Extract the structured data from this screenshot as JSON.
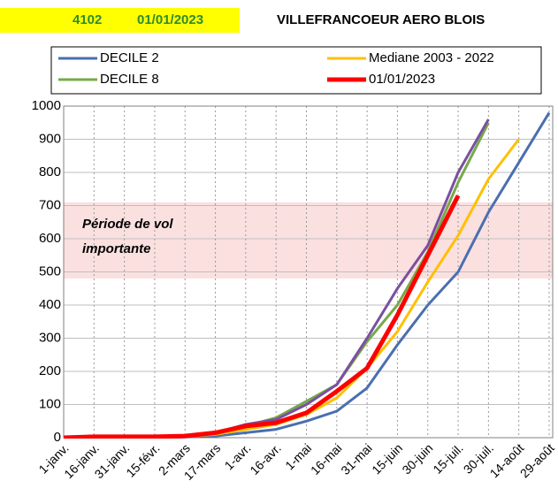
{
  "chart_data": {
    "type": "line",
    "header_code": "4102",
    "header_date": "01/01/2023",
    "title": "VILLEFRANCOEUR AERO BLOIS",
    "categories": [
      "1-janv.",
      "16-janv.",
      "31-janv.",
      "15-févr.",
      "2-mars",
      "17-mars",
      "1-avr.",
      "16-avr.",
      "1-mai",
      "16-mai",
      "31-mai",
      "15-juin",
      "30-juin",
      "15-juil.",
      "30-juil.",
      "14-août",
      "29-août"
    ],
    "series": [
      {
        "name": "DECILE 2",
        "color": "#4a6fb0",
        "width": 3,
        "values": [
          0,
          0,
          0,
          0,
          2,
          5,
          15,
          25,
          50,
          80,
          150,
          280,
          400,
          500,
          680,
          830,
          980
        ]
      },
      {
        "name": "Mediane 2003 - 2022",
        "color": "#ffc000",
        "width": 3,
        "values": [
          0,
          0,
          0,
          0,
          3,
          10,
          25,
          40,
          70,
          120,
          210,
          320,
          470,
          610,
          780,
          900,
          null
        ]
      },
      {
        "name": "DECILE 8",
        "color": "#77a94a",
        "width": 3,
        "values": [
          0,
          0,
          0,
          0,
          5,
          15,
          35,
          60,
          110,
          160,
          290,
          400,
          560,
          770,
          950,
          null,
          null
        ]
      },
      {
        "name": "01/01/2023",
        "color": "#ff0000",
        "width": 5,
        "values": [
          0,
          3,
          3,
          3,
          5,
          15,
          35,
          45,
          75,
          140,
          210,
          370,
          550,
          730,
          null,
          null,
          null
        ]
      },
      {
        "color": "#7a50a0",
        "width": 3,
        "values": [
          0,
          0,
          0,
          0,
          5,
          15,
          40,
          55,
          100,
          160,
          300,
          450,
          580,
          800,
          960,
          null,
          null
        ]
      }
    ],
    "band": {
      "from": 480,
      "to": 710,
      "color": "#fbe0e0",
      "label_lines": [
        "Période de vol",
        "importante"
      ]
    },
    "ylim": [
      0,
      1000
    ],
    "yticks": [
      0,
      100,
      200,
      300,
      400,
      500,
      600,
      700,
      800,
      900,
      1000
    ],
    "grid": true
  }
}
